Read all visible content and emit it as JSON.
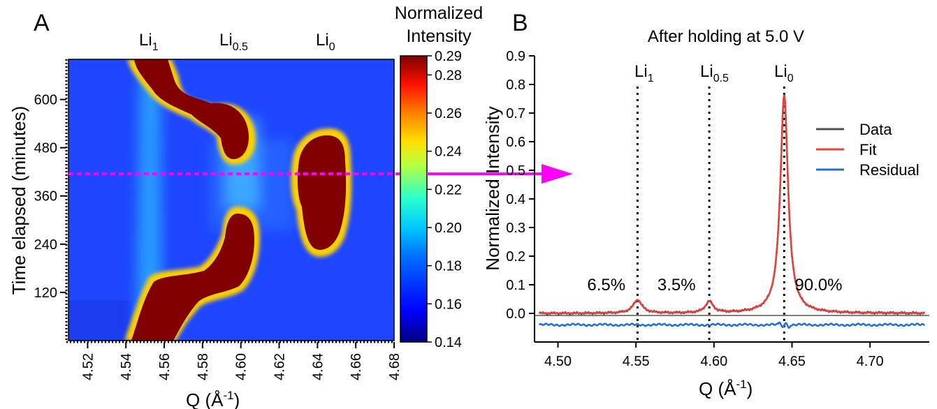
{
  "panel_a": {
    "letter": "A",
    "peak_labels": [
      {
        "base": "Li",
        "sub": "1",
        "q": 4.555
      },
      {
        "base": "Li",
        "sub": "0.5",
        "q": 4.597
      },
      {
        "base": "Li",
        "sub": "0",
        "q": 4.64
      }
    ],
    "colorbar": {
      "title_line1": "Normalized",
      "title_line2": "Intensity",
      "ticks": [
        "0.29",
        "0.28",
        "0.26",
        "0.24",
        "0.22",
        "0.20",
        "0.18",
        "0.16",
        "0.14"
      ]
    }
  },
  "panel_b": {
    "letter": "B",
    "title": "After holding at 5.0 V",
    "peak_labels": [
      {
        "base": "Li",
        "sub": "1",
        "q": 4.551
      },
      {
        "base": "Li",
        "sub": "0.5",
        "q": 4.597
      },
      {
        "base": "Li",
        "sub": "0",
        "q": 4.645
      }
    ],
    "percentages": [
      {
        "text": "6.5%",
        "q": 4.531,
        "y": 0.1
      },
      {
        "text": "3.5%",
        "q": 4.576,
        "y": 0.1
      },
      {
        "text": "90.0%",
        "q": 4.667,
        "y": 0.1
      }
    ],
    "legend": [
      "Data",
      "Fit",
      "Residual"
    ]
  },
  "colors": {
    "data": "#505050",
    "fit": "#e8413c",
    "residual": "#1f6fd1",
    "marker": "#ff00ff"
  },
  "chart_data": [
    {
      "type": "heatmap",
      "xlabel": "Q (Å-1)",
      "ylabel": "Time elapsed (minutes)",
      "xlim": [
        4.51,
        4.68
      ],
      "ylim": [
        0,
        700
      ],
      "x_ticks": [
        "4.52",
        "4.54",
        "4.56",
        "4.58",
        "4.60",
        "4.62",
        "4.64",
        "4.66",
        "4.68"
      ],
      "y_ticks": [
        "120",
        "240",
        "360",
        "480",
        "600"
      ],
      "zlim": [
        0.14,
        0.29
      ],
      "colormap": "jet",
      "marker_time": 415,
      "phases": [
        {
          "label": "Li1",
          "q_path": [
            [
              0,
              4.545
            ],
            [
              60,
              4.551
            ],
            [
              130,
              4.557
            ],
            [
              175,
              4.568
            ],
            [
              215,
              4.584
            ],
            [
              265,
              4.591
            ],
            [
              300,
              4.595
            ],
            [
              330,
              4.597
            ]
          ],
          "t_range": [
            0,
            330
          ]
        },
        {
          "label": "Li0.5",
          "q_path": [
            [
              570,
              4.586
            ],
            [
              610,
              4.58
            ],
            [
              660,
              4.566
            ],
            [
              700,
              4.556
            ]
          ],
          "t_range": [
            440,
            700
          ]
        },
        {
          "label": "Li0",
          "q_path": [
            [
              230,
              4.642
            ],
            [
              330,
              4.64
            ],
            [
              415,
              4.642
            ],
            [
              520,
              4.643
            ]
          ],
          "t_range": [
            230,
            520
          ]
        }
      ]
    },
    {
      "type": "line",
      "title": "After holding at 5.0 V",
      "xlabel": "Q (Å-1)",
      "ylabel": "Normalized Intensity",
      "xlim": [
        4.485,
        4.738
      ],
      "ylim": [
        -0.1,
        0.9
      ],
      "x_ticks": [
        "4.50",
        "4.55",
        "4.60",
        "4.65",
        "4.70"
      ],
      "y_ticks": [
        "0.0",
        "0.1",
        "0.2",
        "0.3",
        "0.4",
        "0.5",
        "0.6",
        "0.7",
        "0.8",
        "0.9"
      ],
      "series": [
        {
          "name": "Data",
          "peaks": [
            {
              "q": 4.551,
              "height": 0.046,
              "width": 0.0035
            },
            {
              "q": 4.597,
              "height": 0.04,
              "width": 0.003
            },
            {
              "q": 4.645,
              "height": 0.765,
              "width": 0.003
            }
          ],
          "baseline": 0.0
        },
        {
          "name": "Fit",
          "peaks": [
            {
              "q": 4.551,
              "height": 0.046,
              "width": 0.0035
            },
            {
              "q": 4.597,
              "height": 0.04,
              "width": 0.003
            },
            {
              "q": 4.645,
              "height": 0.765,
              "width": 0.003
            }
          ],
          "baseline": 0.0
        },
        {
          "name": "Residual",
          "offset": -0.04
        }
      ],
      "reference_lines": [
        4.551,
        4.597,
        4.645
      ]
    }
  ]
}
